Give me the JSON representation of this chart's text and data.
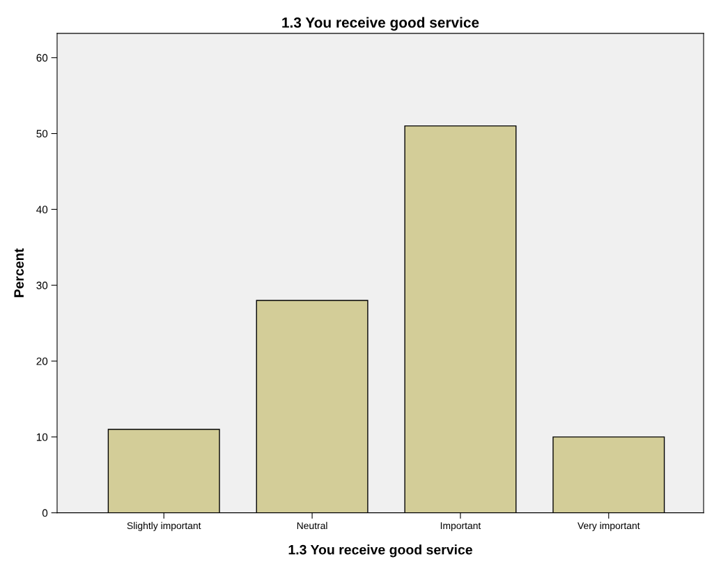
{
  "chart_data": {
    "type": "bar",
    "title": "1.3 You receive good service",
    "xlabel": "1.3 You receive good service",
    "ylabel": "Percent",
    "categories": [
      "Slightly important",
      "Neutral",
      "Important",
      "Very important"
    ],
    "values": [
      11,
      28,
      51,
      10
    ],
    "color": "#d3cd98",
    "ylim": [
      0,
      63.2
    ],
    "yticks": [
      0,
      10,
      20,
      30,
      40,
      50,
      60
    ],
    "grid": false
  }
}
